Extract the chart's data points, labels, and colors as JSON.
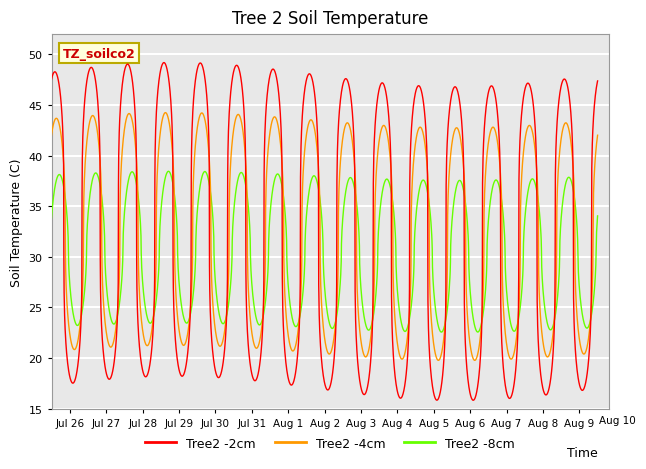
{
  "title": "Tree 2 Soil Temperature",
  "xlabel": "Time",
  "ylabel": "Soil Temperature (C)",
  "ylim": [
    15,
    52
  ],
  "yticks": [
    15,
    20,
    25,
    30,
    35,
    40,
    45,
    50
  ],
  "annotation_text": "TZ_soilco2",
  "annotation_color": "#cc0000",
  "annotation_bg": "#ffffdd",
  "annotation_border": "#bbaa00",
  "line_2cm_color": "#ff0000",
  "line_4cm_color": "#ff9900",
  "line_8cm_color": "#66ff00",
  "legend_labels": [
    "Tree2 -2cm",
    "Tree2 -4cm",
    "Tree2 -8cm"
  ],
  "plot_bg_color": "#e8e8e8",
  "n_days": 15.5,
  "points_per_day": 144,
  "base_2cm": 32.5,
  "amp_2cm": 15.5,
  "base_4cm": 32.0,
  "amp_4cm": 11.5,
  "base_8cm": 30.5,
  "amp_8cm": 7.5,
  "lag_4cm_hours": 1.0,
  "lag_8cm_hours": 3.0,
  "peak_sharpness_2cm": 3.5,
  "peak_sharpness_4cm": 2.5,
  "peak_sharpness_8cm": 1.8,
  "tick_labels": [
    "Jul 26",
    "Jul 27",
    "Jul 28",
    "Jul 29",
    "Jul 30",
    "Jul 31",
    "Aug 1",
    "Aug 2",
    "Aug 3",
    "Aug 4",
    "Aug 5",
    "Aug 6",
    "Aug 7",
    "Aug 8",
    "Aug 9",
    "Aug 10"
  ]
}
